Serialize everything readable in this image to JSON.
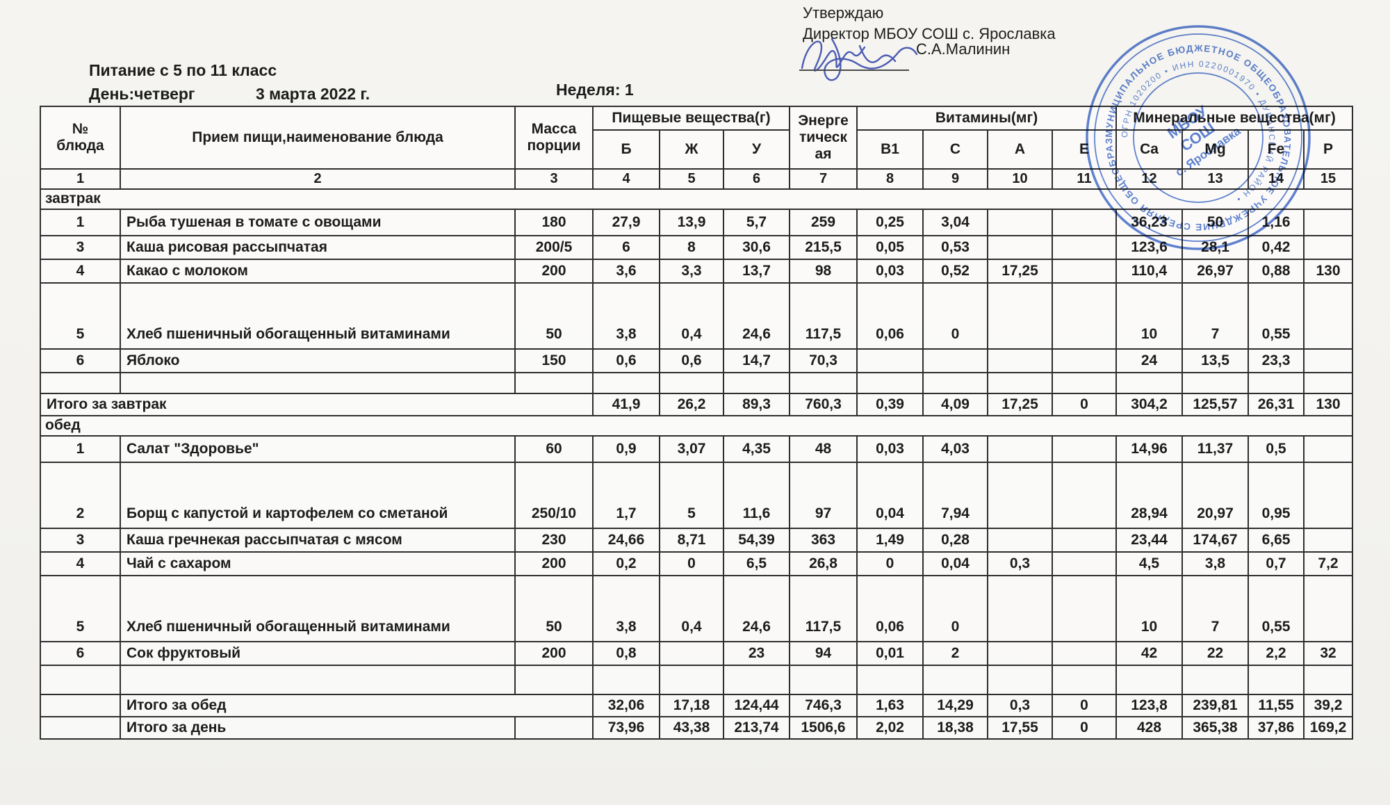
{
  "approval": {
    "line1": "Утверждаю",
    "line2": "Директор МБОУ СОШ с. Ярославка",
    "signer": "С.А.Малинин"
  },
  "header": {
    "title": "Питание с 5 по 11 класс",
    "day": "День:четверг",
    "date": "3 марта 2022 г.",
    "week": "Неделя: 1"
  },
  "stamp": {
    "color": "#3c68c8",
    "center_line1": "МБОУ",
    "center_line2": "СОШ",
    "center_line3": "с. Ярославка",
    "ring_text_outer": "МУНИЦИПАЛЬНОЕ БЮДЖЕТНОЕ ОБЩЕОБРАЗОВАТЕЛЬНОЕ УЧРЕЖДЕНИЕ СРЕДНЯЯ ОБЩЕОБРАЗОВАТЕЛЬНАЯ ШКОЛА",
    "ring_text_inner": "ОГРН 1020200 • ИНН 0220001970 • ДУВАНСКИЙ РАЙОН •"
  },
  "table": {
    "columns": {
      "no": "№\nблюда",
      "meal": "Прием пищи,наименование блюда",
      "mass": "Масса\nпорции",
      "nutrients_group": "Пищевые вещества(г)",
      "energy": "Энерге\nтическ\nая",
      "vitamins_group": "Витамины(мг)",
      "minerals_group": "Минеральные вещества(мг)",
      "sub": [
        "Б",
        "Ж",
        "У",
        "В1",
        "С",
        "А",
        "Е",
        "Ca",
        "Mg",
        "Fe",
        "P"
      ]
    },
    "col_numbers": [
      "1",
      "2",
      "3",
      "4",
      "5",
      "6",
      "7",
      "8",
      "9",
      "10",
      "11",
      "12",
      "13",
      "14",
      "15"
    ],
    "sections": [
      {
        "title": "завтрак",
        "rows": [
          {
            "no": "1",
            "name": "Рыба тушеная в томате с овощами",
            "mass": "180",
            "values": [
              "27,9",
              "13,9",
              "5,7",
              "259",
              "0,25",
              "3,04",
              "",
              "",
              "36,23",
              "50",
              "1,16",
              ""
            ]
          },
          {
            "no": "3",
            "name": "Каша рисовая рассыпчатая",
            "mass": "200/5",
            "values": [
              "6",
              "8",
              "30,6",
              "215,5",
              "0,05",
              "0,53",
              "",
              "",
              "123,6",
              "28,1",
              "0,42",
              ""
            ]
          },
          {
            "no": "4",
            "name": "Какао с молоком",
            "mass": "200",
            "values": [
              "3,6",
              "3,3",
              "13,7",
              "98",
              "0,03",
              "0,52",
              "17,25",
              "",
              "110,4",
              "26,97",
              "0,88",
              "130"
            ]
          },
          {
            "no": "5",
            "name": "Хлеб пшеничный обогащенный витаминами",
            "mass": "50",
            "tall": true,
            "values": [
              "3,8",
              "0,4",
              "24,6",
              "117,5",
              "0,06",
              "0",
              "",
              "",
              "10",
              "7",
              "0,55",
              ""
            ]
          },
          {
            "no": "6",
            "name": "Яблоко",
            "mass": "150",
            "values": [
              "0,6",
              "0,6",
              "14,7",
              "70,3",
              "",
              "",
              "",
              "",
              "24",
              "13,5",
              "23,3",
              ""
            ]
          }
        ],
        "total": {
          "label": "Итого за завтрак",
          "values": [
            "41,9",
            "26,2",
            "89,3",
            "760,3",
            "0,39",
            "4,09",
            "17,25",
            "0",
            "304,2",
            "125,57",
            "26,31",
            "130"
          ]
        }
      },
      {
        "title": "обед",
        "rows": [
          {
            "no": "1",
            "name": "Салат \"Здоровье\"",
            "mass": "60",
            "values": [
              "0,9",
              "3,07",
              "4,35",
              "48",
              "0,03",
              "4,03",
              "",
              "",
              "14,96",
              "11,37",
              "0,5",
              ""
            ]
          },
          {
            "no": "2",
            "name": "Борщ с капустой и картофелем со сметаной",
            "mass": "250/10",
            "tall": true,
            "values": [
              "1,7",
              "5",
              "11,6",
              "97",
              "0,04",
              "7,94",
              "",
              "",
              "28,94",
              "20,97",
              "0,95",
              ""
            ]
          },
          {
            "no": "3",
            "name": "Каша гречнекая рассыпчатая с мясом",
            "mass": "230",
            "values": [
              "24,66",
              "8,71",
              "54,39",
              "363",
              "1,49",
              "0,28",
              "",
              "",
              "23,44",
              "174,67",
              "6,65",
              ""
            ]
          },
          {
            "no": "4",
            "name": "Чай с сахаром",
            "mass": "200",
            "values": [
              "0,2",
              "0",
              "6,5",
              "26,8",
              "0",
              "0,04",
              "0,3",
              "",
              "4,5",
              "3,8",
              "0,7",
              "7,2"
            ]
          },
          {
            "no": "5",
            "name": "Хлеб пшеничный обогащенный витаминами",
            "mass": "50",
            "tall": true,
            "values": [
              "3,8",
              "0,4",
              "24,6",
              "117,5",
              "0,06",
              "0",
              "",
              "",
              "10",
              "7",
              "0,55",
              ""
            ]
          },
          {
            "no": "6",
            "name": "Сок фруктовый",
            "mass": "200",
            "values": [
              "0,8",
              "",
              "23",
              "94",
              "0,01",
              "2",
              "",
              "",
              "42",
              "22",
              "2,2",
              "32"
            ]
          }
        ],
        "total": {
          "label": "Итого за обед",
          "values": [
            "32,06",
            "17,18",
            "124,44",
            "746,3",
            "1,63",
            "14,29",
            "0,3",
            "0",
            "123,8",
            "239,81",
            "11,55",
            "39,2"
          ]
        }
      }
    ],
    "day_total": {
      "label": "Итого за день",
      "values": [
        "73,96",
        "43,38",
        "213,74",
        "1506,6",
        "2,02",
        "18,38",
        "17,55",
        "0",
        "428",
        "365,38",
        "37,86",
        "169,2"
      ]
    }
  }
}
